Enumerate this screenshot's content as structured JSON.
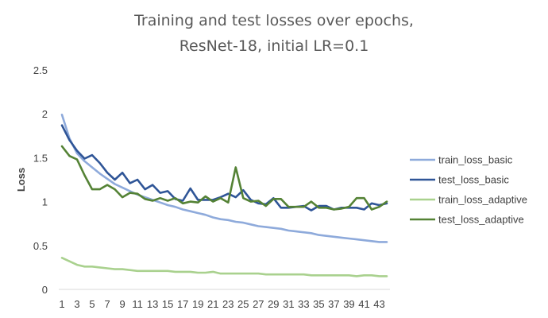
{
  "chart_data": {
    "type": "line",
    "title": [
      "Training and test losses over epochs,",
      "ResNet-18, initial LR=0.1"
    ],
    "xlabel": "",
    "ylabel": "Loss",
    "ylim": [
      0,
      2.5
    ],
    "y_ticks": [
      "0",
      "0.5",
      "1",
      "1.5",
      "2",
      "2.5"
    ],
    "x_tick_labels": [
      "1",
      "3",
      "5",
      "7",
      "9",
      "11",
      "13",
      "15",
      "17",
      "19",
      "21",
      "23",
      "25",
      "27",
      "29",
      "31",
      "33",
      "35",
      "37",
      "39",
      "41",
      "43"
    ],
    "x": [
      1,
      2,
      3,
      4,
      5,
      6,
      7,
      8,
      9,
      10,
      11,
      12,
      13,
      14,
      15,
      16,
      17,
      18,
      19,
      20,
      21,
      22,
      23,
      24,
      25,
      26,
      27,
      28,
      29,
      30,
      31,
      32,
      33,
      34,
      35,
      36,
      37,
      38,
      39,
      40,
      41,
      42,
      43,
      44
    ],
    "grid": false,
    "legend_position": "right",
    "series": [
      {
        "name": "train_loss_basic",
        "color": "#8eaadb",
        "values": [
          1.99,
          1.72,
          1.55,
          1.46,
          1.39,
          1.32,
          1.26,
          1.2,
          1.16,
          1.12,
          1.08,
          1.05,
          1.02,
          0.99,
          0.96,
          0.94,
          0.91,
          0.89,
          0.87,
          0.85,
          0.82,
          0.8,
          0.79,
          0.77,
          0.76,
          0.74,
          0.72,
          0.71,
          0.7,
          0.69,
          0.67,
          0.66,
          0.65,
          0.64,
          0.62,
          0.61,
          0.6,
          0.59,
          0.58,
          0.57,
          0.56,
          0.55,
          0.54,
          0.54
        ]
      },
      {
        "name": "test_loss_basic",
        "color": "#2f5597",
        "values": [
          1.87,
          1.7,
          1.58,
          1.49,
          1.53,
          1.44,
          1.33,
          1.25,
          1.33,
          1.21,
          1.25,
          1.14,
          1.19,
          1.1,
          1.12,
          1.03,
          1.01,
          1.15,
          1.02,
          1.02,
          1.02,
          1.05,
          1.09,
          1.05,
          1.13,
          1.02,
          0.98,
          0.97,
          1.04,
          0.93,
          0.93,
          0.94,
          0.95,
          0.9,
          0.95,
          0.95,
          0.91,
          0.93,
          0.93,
          0.93,
          0.91,
          0.98,
          0.96,
          0.98
        ]
      },
      {
        "name": "train_loss_adaptive",
        "color": "#a9d18e",
        "values": [
          0.36,
          0.32,
          0.28,
          0.26,
          0.26,
          0.25,
          0.24,
          0.23,
          0.23,
          0.22,
          0.21,
          0.21,
          0.21,
          0.21,
          0.21,
          0.2,
          0.2,
          0.2,
          0.19,
          0.19,
          0.2,
          0.18,
          0.18,
          0.18,
          0.18,
          0.18,
          0.18,
          0.17,
          0.17,
          0.17,
          0.17,
          0.17,
          0.17,
          0.16,
          0.16,
          0.16,
          0.16,
          0.16,
          0.16,
          0.15,
          0.16,
          0.16,
          0.15,
          0.15
        ]
      },
      {
        "name": "test_loss_adaptive",
        "color": "#548235",
        "values": [
          1.63,
          1.52,
          1.48,
          1.3,
          1.14,
          1.14,
          1.19,
          1.14,
          1.05,
          1.1,
          1.09,
          1.03,
          1.01,
          1.04,
          1.01,
          1.04,
          0.98,
          1.0,
          0.99,
          1.06,
          1.0,
          1.04,
          0.99,
          1.39,
          1.04,
          1.0,
          1.01,
          0.95,
          1.03,
          1.03,
          0.94,
          0.94,
          0.94,
          1.0,
          0.93,
          0.93,
          0.91,
          0.92,
          0.94,
          1.04,
          1.04,
          0.91,
          0.94,
          1.0
        ]
      }
    ]
  }
}
